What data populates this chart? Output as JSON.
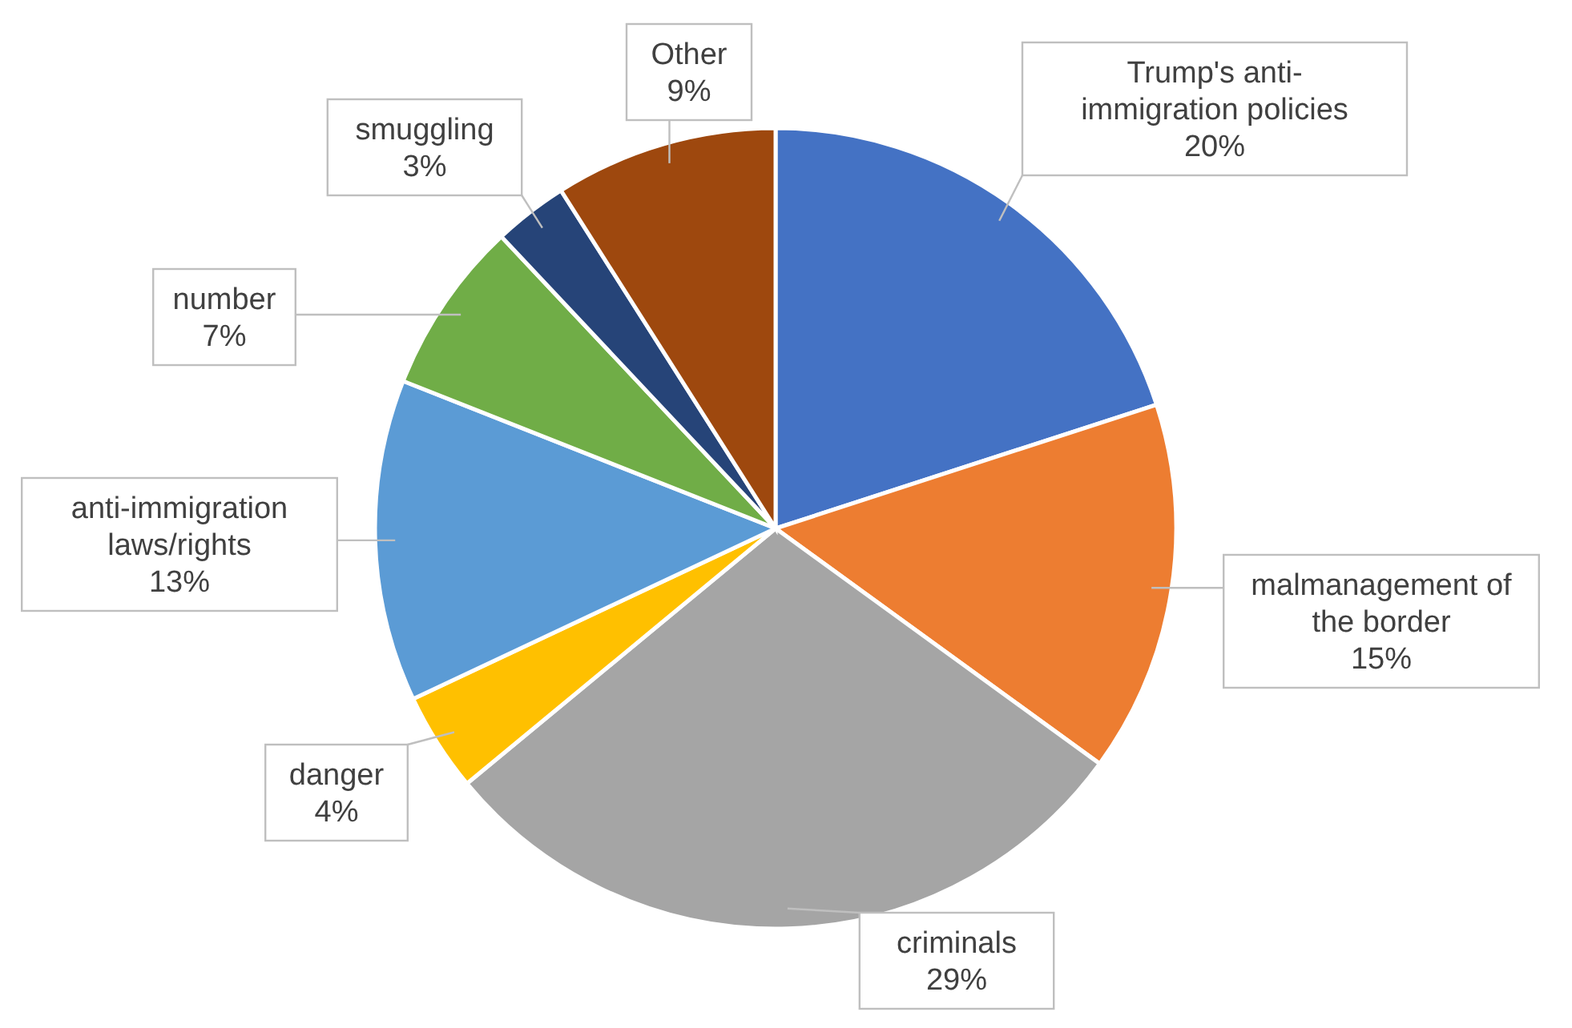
{
  "chart_data": {
    "type": "pie",
    "categories": [
      "Trump's anti-immigration policies",
      "malmanagement of the border",
      "criminals",
      "danger",
      "anti-immigration laws/rights",
      "number",
      "smuggling",
      "Other"
    ],
    "values": [
      20,
      15,
      29,
      4,
      13,
      7,
      3,
      9
    ],
    "value_labels": [
      "20%",
      "15%",
      "29%",
      "4%",
      "13%",
      "7%",
      "3%",
      "9%"
    ],
    "colors": [
      "#4472c4",
      "#ed7d31",
      "#a5a5a5",
      "#ffc000",
      "#5b9bd5",
      "#70ad47",
      "#264478",
      "#9e480e"
    ]
  }
}
